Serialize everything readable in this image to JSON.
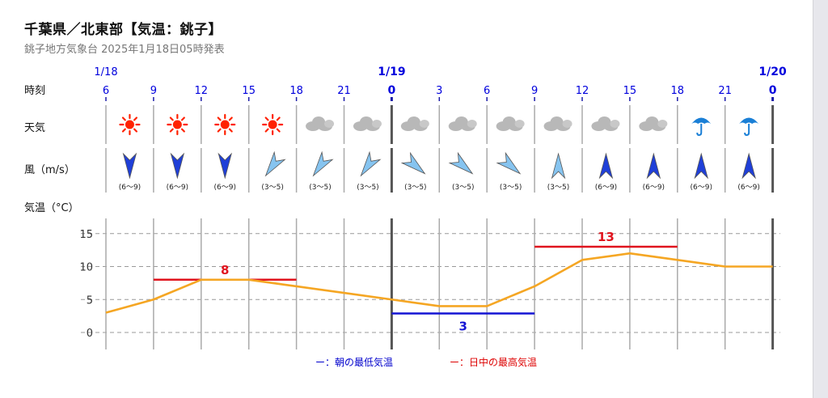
{
  "header": {
    "title": "千葉県／北東部【気温：銚子】",
    "subtitle": "銚子地方気象台 2025年1月18日05時発表"
  },
  "labels": {
    "time": "時刻",
    "weather": "天気",
    "wind": "風（m/s）",
    "temp": "気温（°C）"
  },
  "colors": {
    "sun": "#ff2200",
    "cloud": "#b8b8b8",
    "umbrella": "#1a7fd6",
    "wind_strong": "#1f3fd8",
    "wind_light": "#86c4f0",
    "temp_line": "#f5a623",
    "min_bar": "#1414d4",
    "max_bar": "#e0141e"
  },
  "chart_data": {
    "type": "line",
    "date_labels": [
      {
        "index": 0,
        "label": "1/18",
        "bold": false
      },
      {
        "index": 6,
        "label": "1/19",
        "bold": true
      },
      {
        "index": 14,
        "label": "1/20",
        "bold": true
      }
    ],
    "hours": [
      "6",
      "9",
      "12",
      "15",
      "18",
      "21",
      "0",
      "3",
      "6",
      "9",
      "12",
      "15",
      "18",
      "21",
      "0"
    ],
    "weather": [
      "sun",
      "sun",
      "sun",
      "sun",
      "cloud",
      "cloud",
      "cloud",
      "cloud",
      "cloud",
      "cloud",
      "cloud",
      "cloud",
      "umbrella",
      "umbrella"
    ],
    "wind": [
      {
        "dir": "N",
        "strength": "strong",
        "speed": "(6〜9)"
      },
      {
        "dir": "N",
        "strength": "strong",
        "speed": "(6〜9)"
      },
      {
        "dir": "N",
        "strength": "strong",
        "speed": "(6〜9)"
      },
      {
        "dir": "NE",
        "strength": "light",
        "speed": "(3〜5)"
      },
      {
        "dir": "NE",
        "strength": "light",
        "speed": "(3〜5)"
      },
      {
        "dir": "NE",
        "strength": "light",
        "speed": "(3〜5)"
      },
      {
        "dir": "SE",
        "strength": "light",
        "speed": "(3〜5)"
      },
      {
        "dir": "SE",
        "strength": "light",
        "speed": "(3〜5)"
      },
      {
        "dir": "SE",
        "strength": "light",
        "speed": "(3〜5)"
      },
      {
        "dir": "S",
        "strength": "light",
        "speed": "(3〜5)"
      },
      {
        "dir": "S",
        "strength": "strong",
        "speed": "(6〜9)"
      },
      {
        "dir": "S",
        "strength": "strong",
        "speed": "(6〜9)"
      },
      {
        "dir": "S",
        "strength": "strong",
        "speed": "(6〜9)"
      },
      {
        "dir": "S",
        "strength": "strong",
        "speed": "(6〜9)"
      }
    ],
    "temperatures": [
      3,
      5,
      8,
      8,
      7,
      6,
      5,
      4,
      4,
      7,
      11,
      12,
      11,
      10,
      10
    ],
    "ylim": [
      -2,
      17
    ],
    "yticks": [
      0,
      5,
      10,
      15
    ],
    "min_temp": {
      "value": 3,
      "label": "3",
      "from_index": 6,
      "to_index": 9
    },
    "max_temps": [
      {
        "value": 8,
        "label": "8",
        "from_index": 1,
        "to_index": 4
      },
      {
        "value": 13,
        "label": "13",
        "from_index": 9,
        "to_index": 12
      }
    ],
    "grid": true,
    "legend": {
      "min": "ー：朝の最低気温",
      "max": "ー：日中の最高気温"
    }
  }
}
